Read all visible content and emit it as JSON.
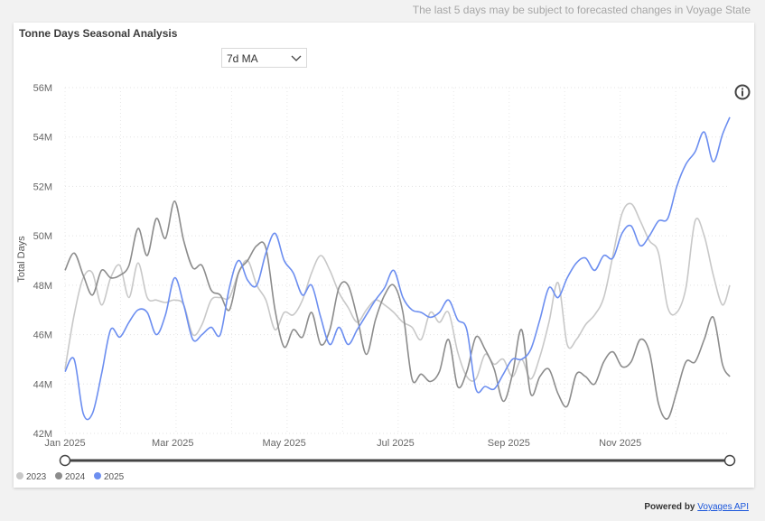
{
  "notice": "The last 5 days may be subject to forecasted changes in Voyage State",
  "dropdown": {
    "selected": "7d MA"
  },
  "footer": {
    "prefix": "Powered by",
    "link": "Voyages API"
  },
  "colors": {
    "2023": "#c8c8c8",
    "2024": "#8c8c8c",
    "2025": "#6c8ef0"
  },
  "chart_data": {
    "type": "line",
    "title": "Tonne Days Seasonal Analysis",
    "xlabel": "",
    "ylabel": "Total Days",
    "ylim": [
      42,
      56
    ],
    "y_ticks": [
      "42M",
      "44M",
      "46M",
      "48M",
      "50M",
      "52M",
      "54M",
      "56M"
    ],
    "y_tick_values": [
      42,
      44,
      46,
      48,
      50,
      52,
      54,
      56
    ],
    "x_tick_labels": [
      "Jan 2025",
      "Mar 2025",
      "May 2025",
      "Jul 2025",
      "Sep 2025",
      "Nov 2025"
    ],
    "x_tick_days": [
      0,
      59,
      120,
      181,
      243,
      304
    ],
    "x_range": [
      0,
      364
    ],
    "grid": true,
    "legend_position": "bottom-left",
    "series": [
      {
        "name": "2023",
        "days": [
          0,
          5,
          10,
          15,
          20,
          25,
          30,
          35,
          40,
          45,
          50,
          55,
          60,
          65,
          70,
          75,
          80,
          85,
          90,
          95,
          100,
          105,
          110,
          115,
          120,
          125,
          130,
          135,
          140,
          145,
          150,
          155,
          160,
          165,
          170,
          175,
          180,
          185,
          190,
          195,
          200,
          205,
          210,
          215,
          220,
          225,
          230,
          235,
          240,
          245,
          250,
          255,
          260,
          265,
          270,
          275,
          280,
          285,
          290,
          295,
          300,
          305,
          310,
          315,
          320,
          325,
          330,
          335,
          340,
          345,
          350,
          355,
          360,
          364
        ],
        "values": [
          44.6,
          46.8,
          48.3,
          48.5,
          47.2,
          48.3,
          48.8,
          47.5,
          48.9,
          47.5,
          47.4,
          47.3,
          47.4,
          47.2,
          46.0,
          46.4,
          47.4,
          47.5,
          47.5,
          48.5,
          49.0,
          48.0,
          47.4,
          46.2,
          46.9,
          46.8,
          47.4,
          48.5,
          49.2,
          48.6,
          47.7,
          47.1,
          46.5,
          47.0,
          47.4,
          47.2,
          46.9,
          46.5,
          46.3,
          45.8,
          46.9,
          46.5,
          46.9,
          45.3,
          44.3,
          44.2,
          45.2,
          44.8,
          45.0,
          44.3,
          45.0,
          44.2,
          45.1,
          46.5,
          48.1,
          45.6,
          45.8,
          46.4,
          46.8,
          47.5,
          49.2,
          50.9,
          51.3,
          50.6,
          49.8,
          49.3,
          47.1,
          46.9,
          47.9,
          50.6,
          50.0,
          48.4,
          47.2,
          48.0
        ]
      },
      {
        "name": "2024",
        "days": [
          0,
          5,
          10,
          15,
          20,
          25,
          30,
          35,
          40,
          45,
          50,
          55,
          60,
          65,
          70,
          75,
          80,
          85,
          90,
          95,
          100,
          105,
          110,
          115,
          120,
          125,
          130,
          135,
          140,
          145,
          150,
          155,
          160,
          165,
          170,
          175,
          180,
          185,
          190,
          195,
          200,
          205,
          210,
          215,
          220,
          225,
          230,
          235,
          240,
          245,
          250,
          255,
          260,
          265,
          270,
          275,
          280,
          285,
          290,
          295,
          300,
          305,
          310,
          315,
          320,
          325,
          330,
          335,
          340,
          345,
          350,
          355,
          360,
          364
        ],
        "values": [
          48.6,
          49.3,
          48.4,
          47.6,
          48.6,
          48.3,
          48.4,
          48.8,
          50.3,
          49.2,
          50.7,
          49.9,
          51.4,
          49.8,
          48.7,
          48.8,
          47.8,
          47.6,
          47.0,
          48.5,
          49.0,
          49.6,
          49.5,
          47.0,
          45.5,
          46.2,
          45.9,
          46.9,
          45.6,
          46.2,
          47.9,
          48.0,
          46.7,
          45.2,
          46.6,
          47.6,
          48.0,
          46.9,
          44.2,
          44.4,
          44.1,
          44.5,
          45.8,
          43.9,
          44.5,
          45.9,
          45.4,
          44.6,
          43.3,
          44.4,
          46.2,
          43.6,
          44.3,
          44.6,
          43.6,
          43.1,
          44.4,
          44.3,
          44.0,
          44.9,
          45.3,
          44.7,
          44.9,
          45.8,
          45.3,
          43.2,
          42.6,
          43.7,
          44.9,
          44.9,
          45.8,
          46.7,
          44.8,
          44.3
        ]
      },
      {
        "name": "2025",
        "days": [
          0,
          5,
          10,
          15,
          20,
          25,
          30,
          35,
          40,
          45,
          50,
          55,
          60,
          65,
          70,
          75,
          80,
          85,
          90,
          95,
          100,
          105,
          110,
          115,
          120,
          125,
          130,
          135,
          140,
          145,
          150,
          155,
          160,
          165,
          170,
          175,
          180,
          185,
          190,
          195,
          200,
          205,
          210,
          215,
          220,
          225,
          230,
          235,
          240,
          245,
          250,
          255,
          260,
          265,
          270,
          275,
          280,
          285,
          290,
          295,
          300,
          305,
          310,
          315,
          320,
          325,
          330,
          335,
          340,
          345,
          350,
          355,
          360,
          364
        ],
        "values": [
          44.5,
          45.0,
          42.8,
          42.8,
          44.4,
          46.2,
          45.9,
          46.5,
          47.0,
          46.9,
          46.0,
          46.8,
          48.3,
          47.2,
          45.8,
          46.0,
          46.3,
          46.0,
          47.9,
          49.0,
          48.2,
          48.0,
          49.3,
          50.1,
          49.0,
          48.5,
          47.6,
          48.0,
          46.7,
          45.6,
          46.3,
          45.6,
          46.2,
          46.8,
          47.4,
          47.9,
          48.6,
          47.5,
          47.0,
          46.9,
          46.7,
          46.9,
          47.4,
          46.6,
          46.2,
          43.8,
          43.9,
          43.8,
          44.4,
          45.0,
          45.0,
          45.4,
          46.6,
          47.9,
          47.5,
          48.3,
          48.9,
          49.1,
          48.6,
          49.2,
          49.1,
          50.1,
          50.4,
          49.6,
          50.0,
          50.6,
          50.7,
          52.0,
          52.9,
          53.4,
          54.2,
          53.0,
          54.1,
          54.8
        ]
      }
    ]
  }
}
